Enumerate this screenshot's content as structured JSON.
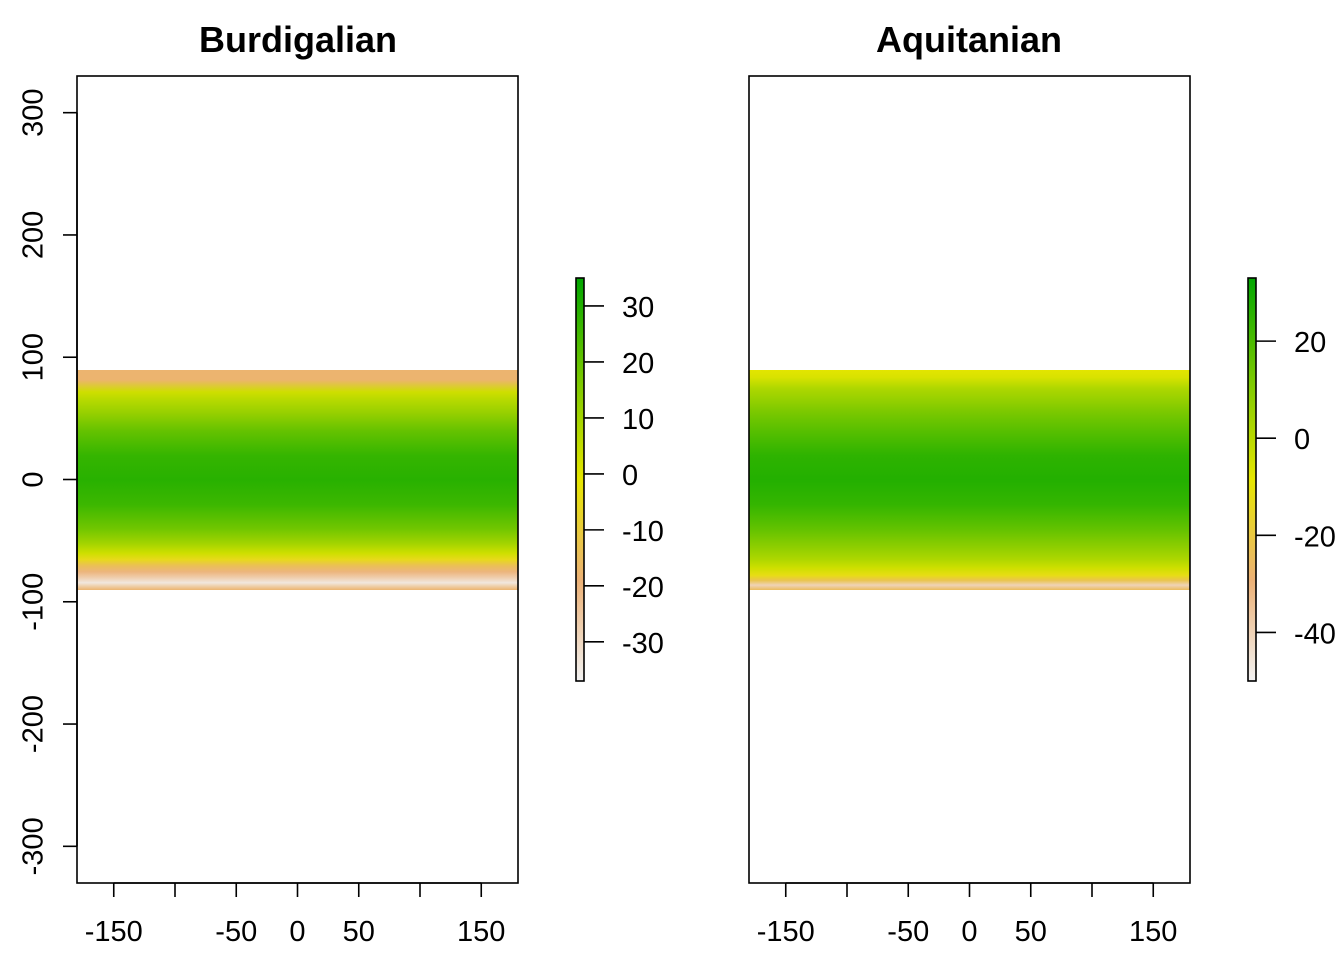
{
  "chart_data": [
    {
      "type": "heatmap",
      "title": "Burdigalian",
      "xlim": [
        -180,
        180
      ],
      "ylim": [
        -330,
        330
      ],
      "x_ticks": [
        -150,
        -100,
        -50,
        0,
        50,
        100,
        150
      ],
      "x_tick_labels": [
        "-150",
        "",
        "-50",
        "0",
        "50",
        "",
        "150"
      ],
      "y_ticks": [
        -300,
        -200,
        -100,
        0,
        100,
        200,
        300
      ],
      "y_tick_labels": [
        "-300",
        "-200",
        "-100",
        "0",
        "100",
        "200",
        "300"
      ],
      "extent": {
        "x": [
          -180,
          180
        ],
        "y": [
          -90,
          90
        ]
      },
      "legend": {
        "range": [
          -37,
          35
        ],
        "ticks": [
          30,
          20,
          10,
          0,
          -10,
          -20,
          -30
        ],
        "tick_labels": [
          "30",
          "20",
          "10",
          "0",
          "-10",
          "-20",
          "-30"
        ]
      },
      "profile": [
        [
          90,
          -18
        ],
        [
          82,
          -18
        ],
        [
          72,
          3
        ],
        [
          65,
          7
        ],
        [
          55,
          12
        ],
        [
          40,
          20
        ],
        [
          20,
          27
        ],
        [
          0,
          29
        ],
        [
          -20,
          26
        ],
        [
          -40,
          18
        ],
        [
          -52,
          10
        ],
        [
          -60,
          3
        ],
        [
          -65,
          -5
        ],
        [
          -70,
          -14
        ],
        [
          -75,
          -20
        ],
        [
          -80,
          -27
        ],
        [
          -84,
          -34
        ],
        [
          -90,
          -18
        ]
      ]
    },
    {
      "type": "heatmap",
      "title": "Aquitanian",
      "xlim": [
        -180,
        180
      ],
      "ylim": [
        -330,
        330
      ],
      "x_ticks": [
        -150,
        -100,
        -50,
        0,
        50,
        100,
        150
      ],
      "x_tick_labels": [
        "-150",
        "",
        "-50",
        "0",
        "50",
        "",
        "150"
      ],
      "y_ticks": [
        -300,
        -200,
        -100,
        0,
        100,
        200,
        300
      ],
      "y_tick_labels": [
        "",
        "",
        "",
        "",
        "",
        "",
        ""
      ],
      "extent": {
        "x": [
          -180,
          180
        ],
        "y": [
          -90,
          90
        ]
      },
      "legend": {
        "range": [
          -50,
          33
        ],
        "ticks": [
          20,
          0,
          -20,
          -40
        ],
        "tick_labels": [
          "20",
          "0",
          "-20",
          "-40"
        ]
      },
      "profile": [
        [
          90,
          -8
        ],
        [
          84,
          -6
        ],
        [
          75,
          2
        ],
        [
          65,
          7
        ],
        [
          55,
          12
        ],
        [
          40,
          18
        ],
        [
          20,
          25
        ],
        [
          0,
          27
        ],
        [
          -20,
          24
        ],
        [
          -40,
          16
        ],
        [
          -55,
          8
        ],
        [
          -65,
          2
        ],
        [
          -72,
          -4
        ],
        [
          -78,
          -12
        ],
        [
          -82,
          -22
        ],
        [
          -86,
          -40
        ],
        [
          -90,
          -25
        ]
      ]
    }
  ]
}
